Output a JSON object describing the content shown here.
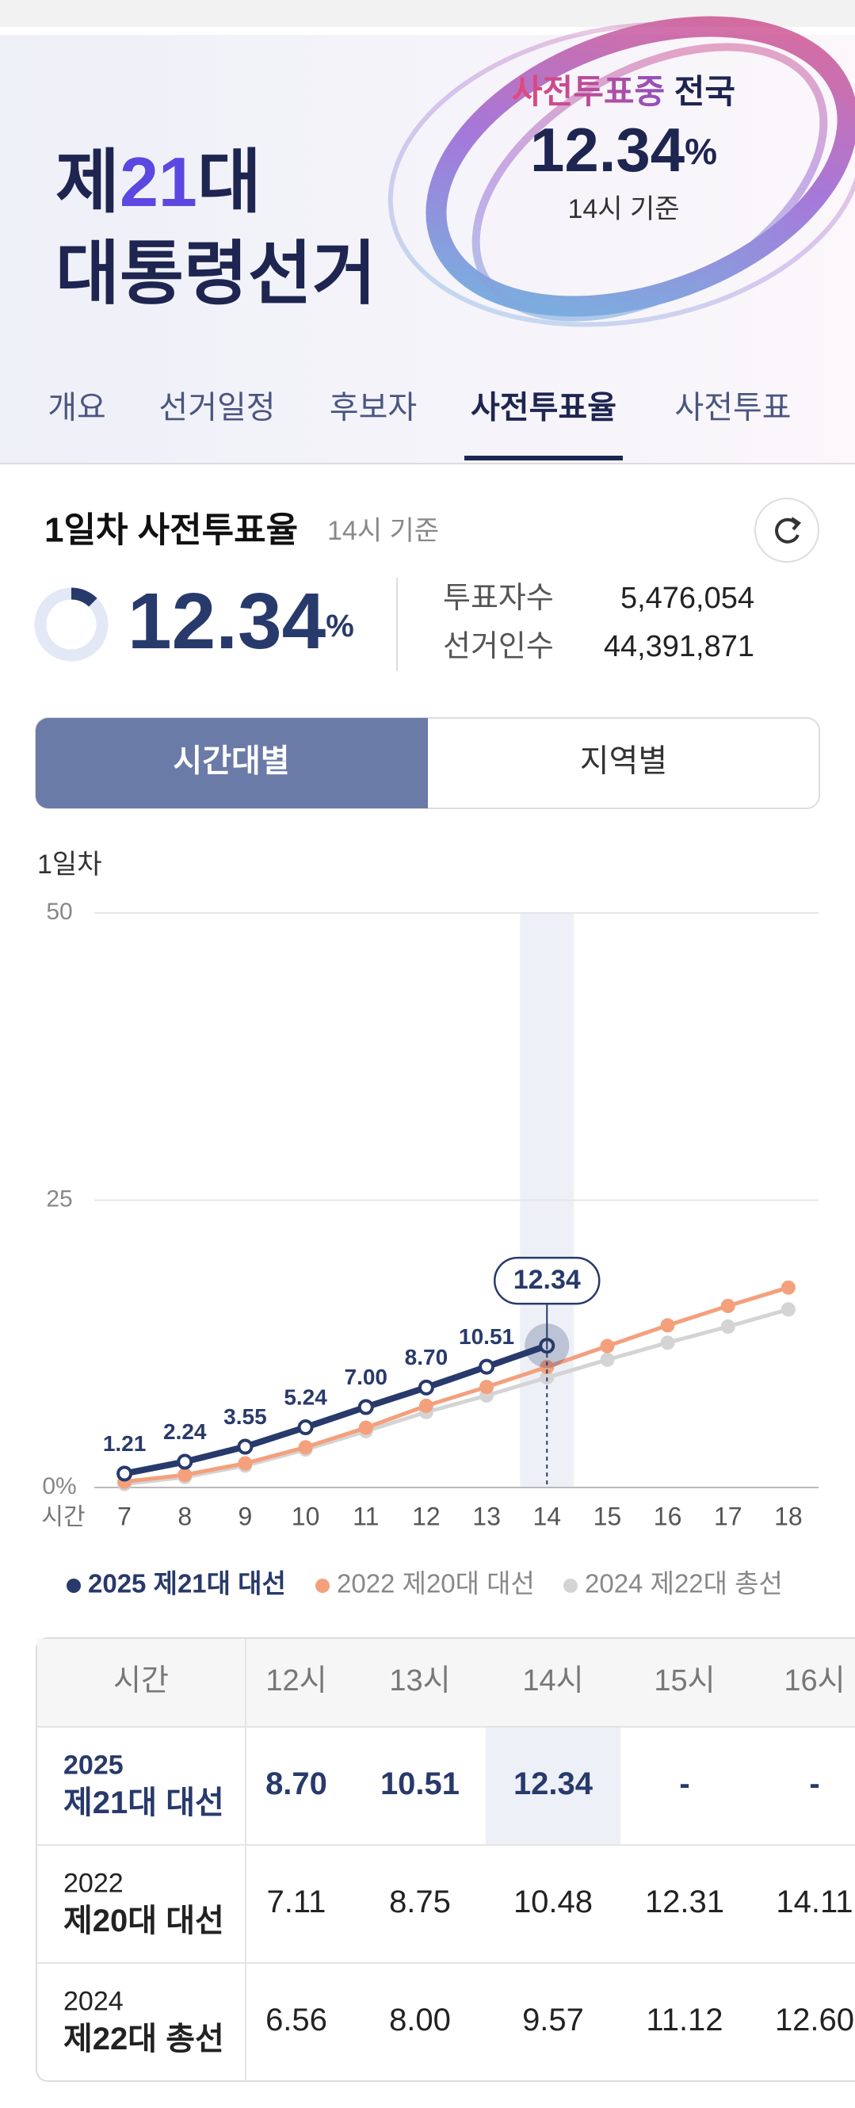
{
  "banner": {
    "title_prefix": "제",
    "title_number": "21",
    "title_suffix": "대",
    "title_line2": "대통령선거",
    "status": "사전투표중",
    "region": "전국",
    "rate": 12.34,
    "rate_unit": "%",
    "basis": "14시 기준"
  },
  "tabs": [
    "개요",
    "선거일정",
    "후보자",
    "사전투표율",
    "사전투표"
  ],
  "summary": {
    "title": "1일차 사전투표율",
    "basis": "14시 기준",
    "rate": 12.34,
    "rate_unit": "%",
    "voters_label": "투표자수",
    "voters": "5,476,054",
    "electorate_label": "선거인수",
    "electorate": "44,391,871"
  },
  "toggle": [
    "시간대별",
    "지역별"
  ],
  "chart_data": {
    "type": "line",
    "title": "1일차",
    "xlabel": "시간",
    "x": [
      7,
      8,
      9,
      10,
      11,
      12,
      13,
      14,
      15,
      16,
      17,
      18
    ],
    "xlim": [
      6.5,
      18.5
    ],
    "xticks": [
      7,
      8,
      9,
      10,
      11,
      12,
      13,
      14,
      15,
      16,
      17,
      18
    ],
    "ylim": [
      0,
      50
    ],
    "yticks": [
      {
        "value": 0,
        "label": "0%"
      },
      25,
      50
    ],
    "grid": true,
    "highlight": 14,
    "series": [
      {
        "name": "2025 제21대 대선",
        "color": "#283a6b",
        "values": [
          1.21,
          2.24,
          3.55,
          5.24,
          7.0,
          8.7,
          10.51,
          12.34,
          null,
          null,
          null,
          null
        ],
        "value_labels": [
          "1.21",
          "2.24",
          "3.55",
          "5.24",
          "7.00",
          "8.70",
          "10.51",
          "12.34",
          null,
          null,
          null,
          null
        ]
      },
      {
        "name": "2022 제20대 대선",
        "color": "#f4a07c",
        "values": [
          0.5,
          1.1,
          2.1,
          3.5,
          5.2,
          7.11,
          8.75,
          10.48,
          12.31,
          14.11,
          15.8,
          17.4
        ]
      },
      {
        "name": "2024 제22대 총선",
        "color": "#d4d4d4",
        "values": [
          0.3,
          0.9,
          1.9,
          3.3,
          4.9,
          6.56,
          8.0,
          9.57,
          11.12,
          12.6,
          14.0,
          15.5
        ]
      }
    ]
  },
  "table": {
    "header": [
      "시간",
      "12시",
      "13시",
      "14시",
      "15시",
      "16시"
    ],
    "rows": [
      [
        "2025",
        "제21대 대선",
        "8.70",
        "10.51",
        "12.34",
        "-",
        "-"
      ],
      [
        "2022",
        "제20대 대선",
        "7.11",
        "8.75",
        "10.48",
        "12.31",
        "14.11"
      ],
      [
        "2024",
        "제22대 총선",
        "6.56",
        "8.00",
        "9.57",
        "11.12",
        "12.60"
      ]
    ]
  }
}
